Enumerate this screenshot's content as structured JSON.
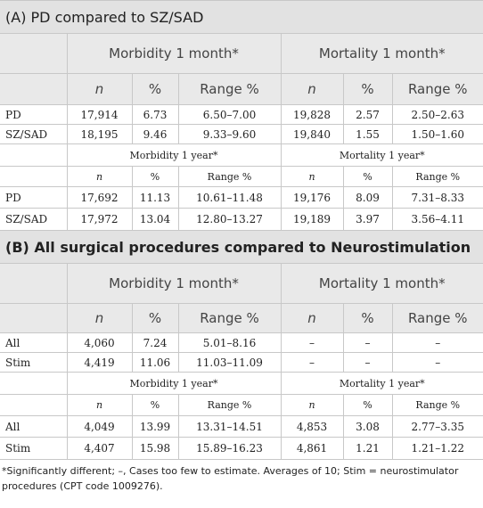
{
  "sections": [
    {
      "title": "(A) PD compared to SZ/SAD",
      "blocks": [
        {
          "groups": [
            "Morbidity 1 month*",
            "Mortality 1 month*"
          ],
          "columns": [
            "n",
            "%",
            "Range %",
            "n",
            "%",
            "Range %"
          ],
          "rows": [
            [
              "PD",
              "17,914",
              "6.73",
              "6.50–7.00",
              "19,828",
              "2.57",
              "2.50–2.63"
            ],
            [
              "SZ/SAD",
              "18,195",
              "9.46",
              "9.33–9.60",
              "19,840",
              "1.55",
              "1.50–1.60"
            ]
          ]
        },
        {
          "groups": [
            "Morbidity 1 year*",
            "Mortality 1 year*"
          ],
          "columns": [
            "n",
            "%",
            "Range %",
            "n",
            "%",
            "Range %"
          ],
          "rows": [
            [
              "PD",
              "17,692",
              "11.13",
              "10.61–11.48",
              "19,176",
              "8.09",
              "7.31–8.33"
            ],
            [
              "SZ/SAD",
              "17,972",
              "13.04",
              "12.80–13.27",
              "19,189",
              "3.97",
              "3.56–4.11"
            ]
          ]
        }
      ]
    },
    {
      "title": "(B) All surgical procedures compared to Neurostimulation",
      "blocks": [
        {
          "groups": [
            "Morbidity 1 month*",
            "Mortality 1 month*"
          ],
          "columns": [
            "n",
            "%",
            "Range %",
            "n",
            "%",
            "Range %"
          ],
          "rows": [
            [
              "All",
              "4,060",
              "7.24",
              "5.01–8.16",
              "–",
              "–",
              "–"
            ],
            [
              "Stim",
              "4,419",
              "11.06",
              "11.03–11.09",
              "–",
              "–",
              "–"
            ]
          ]
        },
        {
          "groups": [
            "Morbidity 1 year*",
            "Mortality 1 year*"
          ],
          "columns": [
            "n",
            "%",
            "Range %",
            "n",
            "%",
            "Range %"
          ],
          "rows": [
            [
              "All",
              "4,049",
              "13.99",
              "13.31–14.51",
              "4,853",
              "3.08",
              "2.77–3.35"
            ],
            [
              "Stim",
              "4,407",
              "15.98",
              "15.89–16.23",
              "4,861",
              "1.21",
              "1.21–1.22"
            ]
          ]
        }
      ]
    }
  ],
  "footnote": "*Significantly different; –, Cases too few to estimate. Averages of 10; Stim = neurostimulator procedures (CPT code 1009276)."
}
